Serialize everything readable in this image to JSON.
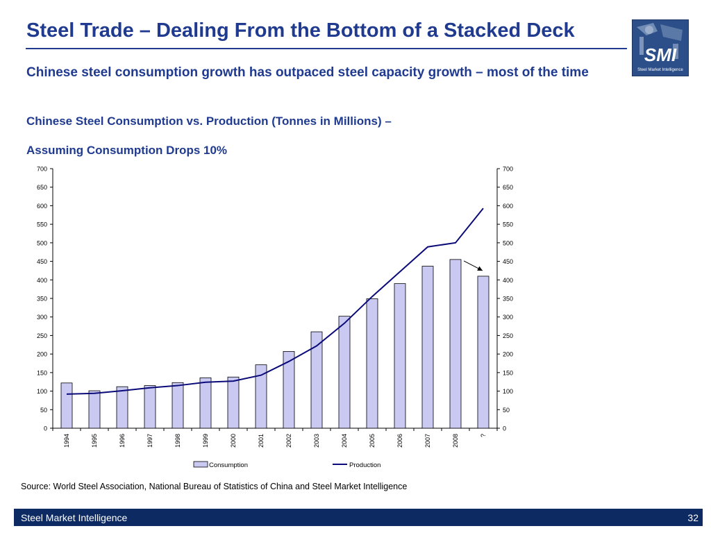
{
  "slide": {
    "title": "Steel Trade – Dealing From the Bottom of a Stacked Deck",
    "subtitle": "Chinese steel consumption growth has outpaced steel capacity growth – most of the time",
    "chart_title_line1": "Chinese Steel Consumption vs. Production (Tonnes in Millions) –",
    "chart_title_line2": "Assuming Consumption Drops 10%",
    "source": "Source: World Steel Association, National Bureau of Statistics of China and Steel Market Intelligence",
    "footer_left": "Steel Market Intelligence",
    "page_number": "32",
    "logo_text": "SMI",
    "logo_caption": "Steel Market Intelligence"
  },
  "colors": {
    "brand_blue": "#1f3a8f",
    "footer_navy": "#0d2a63",
    "bar_fill": "#c9c9f2",
    "bar_stroke": "#000000",
    "line": "#0a0a78"
  },
  "chart_data": {
    "type": "bar",
    "categories": [
      "1994",
      "1995",
      "1996",
      "1997",
      "1998",
      "1999",
      "2000",
      "2001",
      "2002",
      "2003",
      "2004",
      "2005",
      "2006",
      "2007",
      "2008",
      "?"
    ],
    "series": [
      {
        "name": "Consumption",
        "type": "bar",
        "values": [
          122,
          101,
          112,
          115,
          123,
          136,
          138,
          171,
          207,
          260,
          302,
          349,
          390,
          437,
          455,
          410
        ]
      },
      {
        "name": "Production",
        "type": "line",
        "values": [
          92,
          94,
          101,
          109,
          115,
          124,
          127,
          143,
          180,
          222,
          283,
          355,
          422,
          489,
          500,
          593
        ]
      }
    ],
    "ylim": [
      0,
      700
    ],
    "yticks": [
      0,
      50,
      100,
      150,
      200,
      250,
      300,
      350,
      400,
      450,
      500,
      550,
      600,
      650,
      700
    ],
    "y_axis_both_sides": true,
    "grid": false,
    "legend": "bottom",
    "annotation": "arrow from 2008 bar to ? bar"
  }
}
